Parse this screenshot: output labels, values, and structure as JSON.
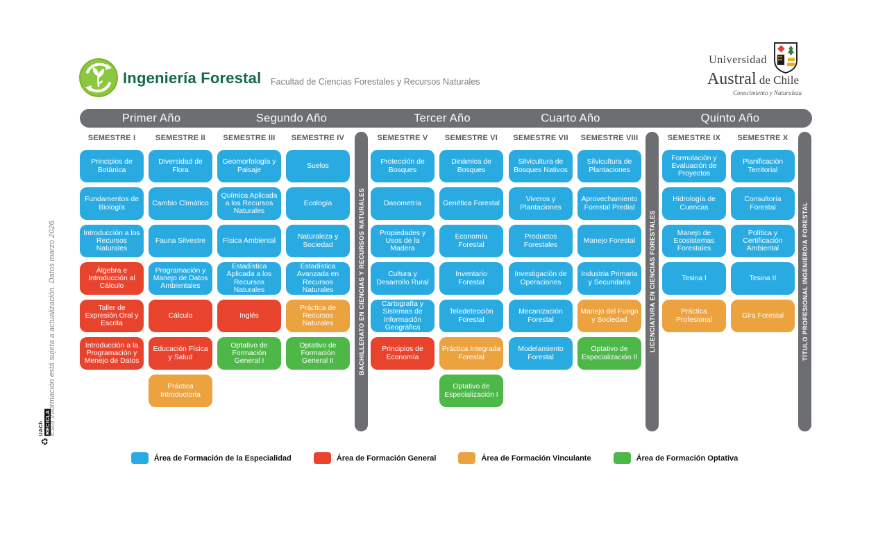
{
  "header": {
    "program": "Ingeniería Forestal",
    "faculty": "Facultad de Ciencias Forestales y Recursos Naturales",
    "university": {
      "line1": "Universidad",
      "line2_strong": "Austral",
      "line2_rest": "de Chile",
      "motto": "Conocimiento y Naturaleza"
    }
  },
  "note_left": "Esta información está sujeta a actualización. Datos marzo 2026.",
  "recicla": {
    "top": "UACh",
    "bottom": "RECICLA"
  },
  "colors": {
    "especialidad": "#29ABE2",
    "general": "#E8432C",
    "vinculante": "#EBA23F",
    "optativa": "#4DB848",
    "bar_gray": "#6D6E71",
    "title_green": "#17694A",
    "logo_green": "#8DC63F"
  },
  "years": [
    {
      "label": "Primer Año"
    },
    {
      "label": "Segundo Año"
    },
    {
      "label": "Tercer Año"
    },
    {
      "label": "Cuarto Año"
    },
    {
      "label": "Quinto Año"
    }
  ],
  "milestones": [
    {
      "label": "BACHILLERATO EN CIENCIAS Y RECURSOS NATURALES"
    },
    {
      "label": "LICENCIATURA EN CIENCIAS FORESTALES"
    },
    {
      "label": "TÍTULO PROFESIONAL INGENIERO/A FORESTAL"
    }
  ],
  "semesters": [
    {
      "label": "SEMESTRE I",
      "courses": [
        {
          "name": "Principios de Botánica",
          "type": "especialidad"
        },
        {
          "name": "Fundamentos de Biología",
          "type": "especialidad"
        },
        {
          "name": "Introducción a los Recursos Naturales",
          "type": "especialidad"
        },
        {
          "name": "Álgebra e Introducción al Cálculo",
          "type": "general"
        },
        {
          "name": "Taller de Expresión Oral y Escrita",
          "type": "general"
        },
        {
          "name": "Introducción a la Programación y Menejo de Datos",
          "type": "general"
        }
      ]
    },
    {
      "label": "SEMESTRE II",
      "courses": [
        {
          "name": "Diversidad de Flora",
          "type": "especialidad"
        },
        {
          "name": "Cambio Climático",
          "type": "especialidad"
        },
        {
          "name": "Fauna Silvestre",
          "type": "especialidad"
        },
        {
          "name": "Programación y Manejo de Datos Ambientales",
          "type": "especialidad"
        },
        {
          "name": "Cálculo",
          "type": "general"
        },
        {
          "name": "Educación Física y Salud",
          "type": "general"
        },
        {
          "name": "Práctica Introductoria",
          "type": "vinculante"
        }
      ]
    },
    {
      "label": "SEMESTRE III",
      "courses": [
        {
          "name": "Geomorfología y Paisaje",
          "type": "especialidad"
        },
        {
          "name": "Química Aplicada a los Recursos Naturales",
          "type": "especialidad"
        },
        {
          "name": "Física Ambiental",
          "type": "especialidad"
        },
        {
          "name": "Estadística Aplicada a los Recursos Naturales",
          "type": "especialidad"
        },
        {
          "name": "Inglés",
          "type": "general"
        },
        {
          "name": "Optativo de Formación General I",
          "type": "optativa"
        }
      ]
    },
    {
      "label": "SEMESTRE IV",
      "courses": [
        {
          "name": "Suelos",
          "type": "especialidad"
        },
        {
          "name": "Ecología",
          "type": "especialidad"
        },
        {
          "name": "Naturaleza y Sociedad",
          "type": "especialidad"
        },
        {
          "name": "Estadística Avanzada en Recursos Naturales",
          "type": "especialidad"
        },
        {
          "name": "Práctica de Recursos Naturales",
          "type": "vinculante"
        },
        {
          "name": "Optativo de Formación General II",
          "type": "optativa"
        }
      ]
    },
    {
      "label": "SEMESTRE V",
      "courses": [
        {
          "name": "Protección de Bosques",
          "type": "especialidad"
        },
        {
          "name": "Dasometría",
          "type": "especialidad"
        },
        {
          "name": "Propiedades y Usos de la Madera",
          "type": "especialidad"
        },
        {
          "name": "Cultura y Desarrollo Rural",
          "type": "especialidad"
        },
        {
          "name": "Cartografía y Sistemas de Información Geográfica",
          "type": "especialidad"
        },
        {
          "name": "Principios de Economía",
          "type": "general"
        }
      ]
    },
    {
      "label": "SEMESTRE VI",
      "courses": [
        {
          "name": "Dinámica de Bosques",
          "type": "especialidad"
        },
        {
          "name": "Genética Forestal",
          "type": "especialidad"
        },
        {
          "name": "Economía Forestal",
          "type": "especialidad"
        },
        {
          "name": "Inventario Forestal",
          "type": "especialidad"
        },
        {
          "name": "Teledetección Forestal",
          "type": "especialidad"
        },
        {
          "name": "Práctica Integrada Forestal",
          "type": "vinculante"
        },
        {
          "name": "Optativo de Especialización I",
          "type": "optativa"
        }
      ]
    },
    {
      "label": "SEMESTRE VII",
      "courses": [
        {
          "name": "Silvicultura de Bosques Nativos",
          "type": "especialidad"
        },
        {
          "name": "Viveros y Plantaciones",
          "type": "especialidad"
        },
        {
          "name": "Productos Forestales",
          "type": "especialidad"
        },
        {
          "name": "Investigación de Operaciones",
          "type": "especialidad"
        },
        {
          "name": "Mecanización Forestal",
          "type": "especialidad"
        },
        {
          "name": "Modelamiento Forestal",
          "type": "especialidad"
        }
      ]
    },
    {
      "label": "SEMESTRE VIII",
      "courses": [
        {
          "name": "Silvicultura de Plantaciones",
          "type": "especialidad"
        },
        {
          "name": "Aprovechamiento Forestal Predial",
          "type": "especialidad"
        },
        {
          "name": "Manejo Forestal",
          "type": "especialidad"
        },
        {
          "name": "Industria Primaria y Secundaria",
          "type": "especialidad"
        },
        {
          "name": "Manejo del Fuego y Sociedad",
          "type": "vinculante"
        },
        {
          "name": "Optativo de Especialización II",
          "type": "optativa"
        }
      ]
    },
    {
      "label": "SEMESTRE IX",
      "courses": [
        {
          "name": "Formulación y Evaluación de Proyectos",
          "type": "especialidad"
        },
        {
          "name": "Hidrología de Cuencas",
          "type": "especialidad"
        },
        {
          "name": "Manejo de Ecosistemas Forestales",
          "type": "especialidad"
        },
        {
          "name": "Tesina I",
          "type": "especialidad"
        },
        {
          "name": "Práctica Profesional",
          "type": "vinculante"
        }
      ]
    },
    {
      "label": "SEMESTRE X",
      "courses": [
        {
          "name": "Planificación Territorial",
          "type": "especialidad"
        },
        {
          "name": "Consultoría Forestal",
          "type": "especialidad"
        },
        {
          "name": "Política y Certificación Ambiental",
          "type": "especialidad"
        },
        {
          "name": "Tesina II",
          "type": "especialidad"
        },
        {
          "name": "Gira Forestal",
          "type": "vinculante"
        }
      ]
    }
  ],
  "legend": [
    {
      "label": "Área de Formación de la Especialidad",
      "type": "especialidad"
    },
    {
      "label": "Área de Formación General",
      "type": "general"
    },
    {
      "label": "Área de Formación Vinculante",
      "type": "vinculante"
    },
    {
      "label": "Área de Formación Optativa",
      "type": "optativa"
    }
  ]
}
